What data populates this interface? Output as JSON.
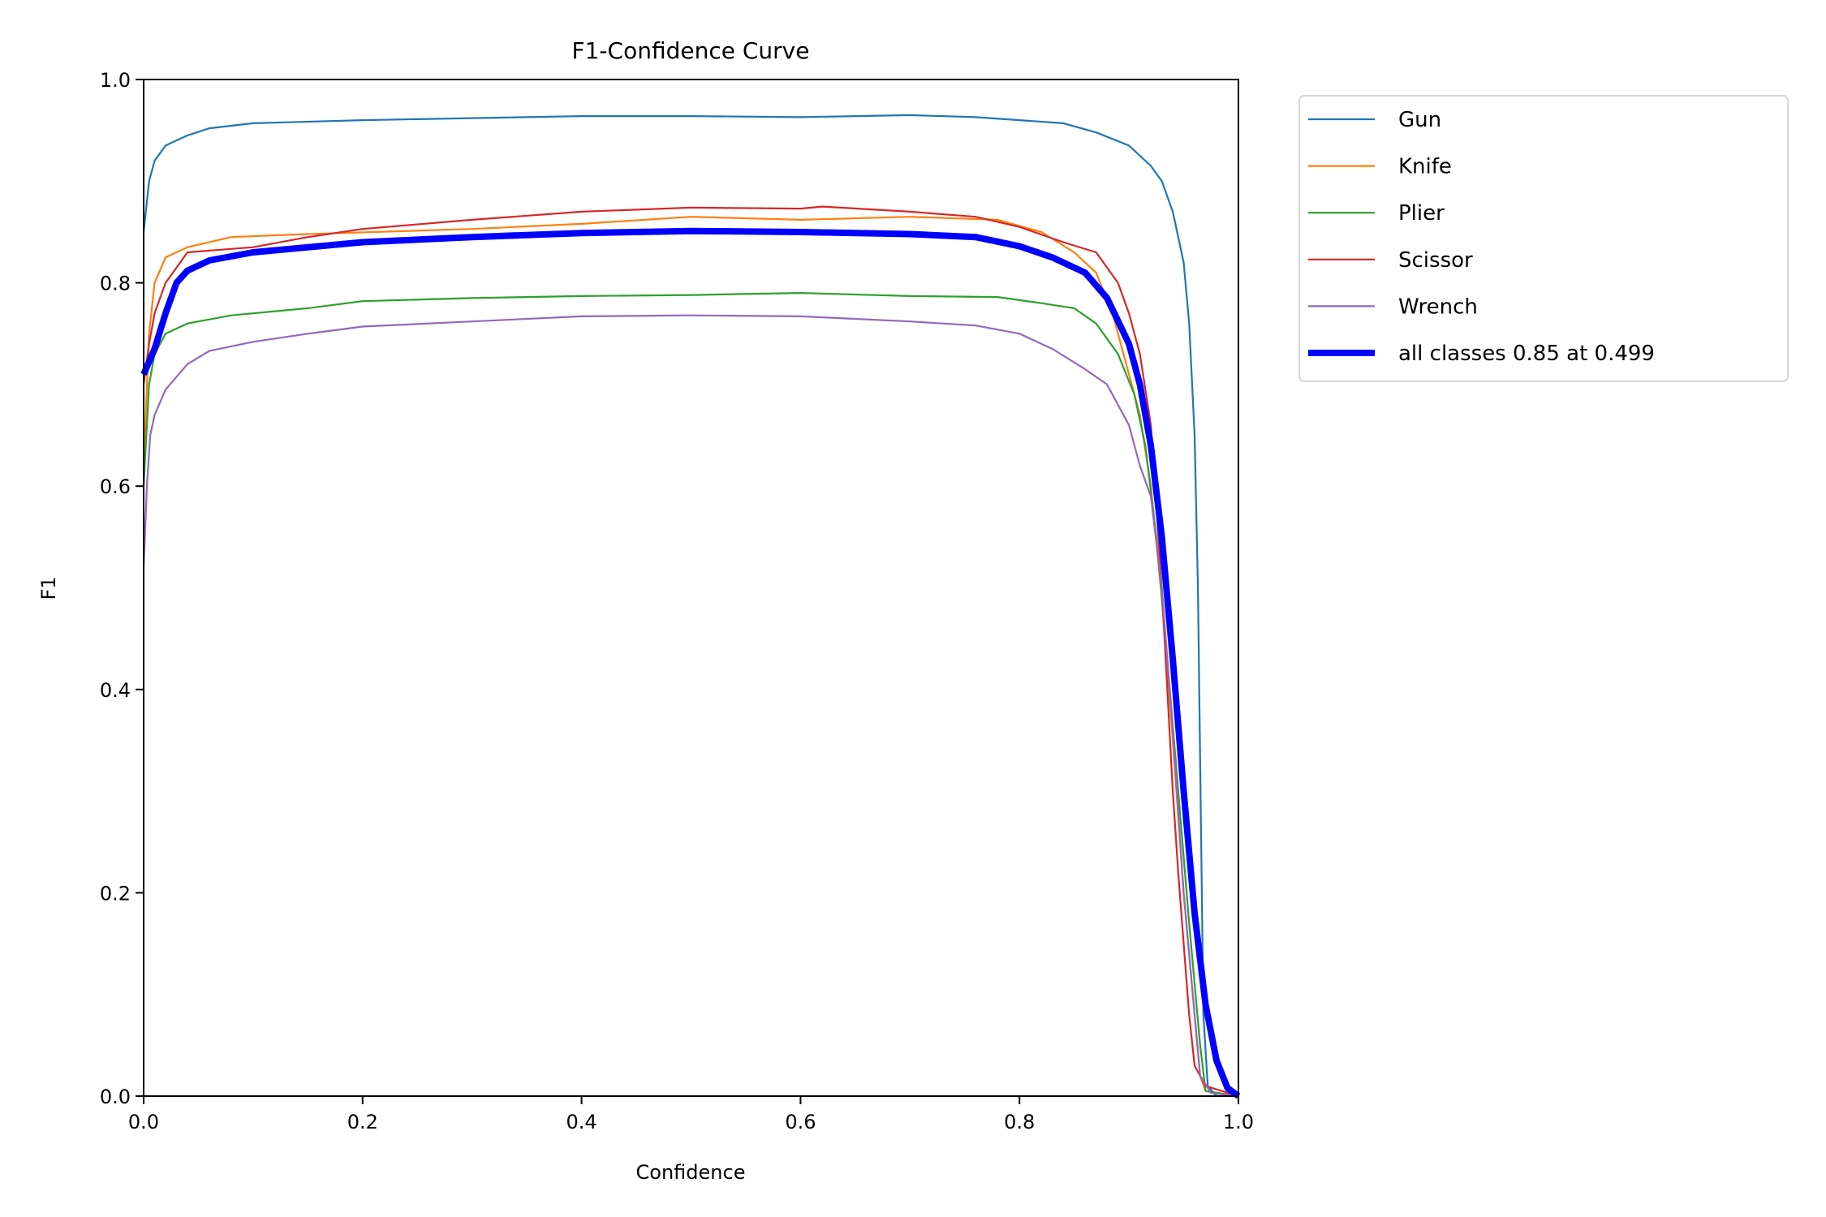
{
  "chart_data": {
    "type": "line",
    "title": "F1-Confidence Curve",
    "xlabel": "Confidence",
    "ylabel": "F1",
    "xlim": [
      0,
      1
    ],
    "ylim": [
      0,
      1
    ],
    "xticks": [
      "0.0",
      "0.2",
      "0.4",
      "0.6",
      "0.8",
      "1.0"
    ],
    "yticks": [
      "0.0",
      "0.2",
      "0.4",
      "0.6",
      "0.8",
      "1.0"
    ],
    "grid": false,
    "legend_placement": "outside-top-right",
    "series": [
      {
        "name": "Gun",
        "color": "#1f77b4",
        "width": "thin",
        "x": [
          0,
          0.005,
          0.01,
          0.02,
          0.04,
          0.06,
          0.1,
          0.2,
          0.3,
          0.4,
          0.5,
          0.6,
          0.7,
          0.76,
          0.8,
          0.84,
          0.87,
          0.9,
          0.92,
          0.93,
          0.94,
          0.95,
          0.955,
          0.96,
          0.963,
          0.966,
          0.968,
          0.972,
          0.98,
          1
        ],
        "y": [
          0.85,
          0.9,
          0.92,
          0.935,
          0.945,
          0.952,
          0.957,
          0.96,
          0.962,
          0.964,
          0.964,
          0.963,
          0.965,
          0.963,
          0.96,
          0.957,
          0.948,
          0.935,
          0.915,
          0.9,
          0.87,
          0.82,
          0.76,
          0.65,
          0.5,
          0.25,
          0.08,
          0.01,
          0,
          0
        ]
      },
      {
        "name": "Knife",
        "color": "#ff7f0e",
        "width": "thin",
        "x": [
          0,
          0.005,
          0.01,
          0.02,
          0.04,
          0.08,
          0.15,
          0.3,
          0.4,
          0.5,
          0.6,
          0.7,
          0.78,
          0.82,
          0.85,
          0.87,
          0.885,
          0.9,
          0.91,
          0.92,
          0.93,
          0.94,
          0.95,
          0.96,
          0.965,
          0.97,
          1
        ],
        "y": [
          0.62,
          0.75,
          0.8,
          0.825,
          0.835,
          0.845,
          0.848,
          0.853,
          0.858,
          0.865,
          0.862,
          0.865,
          0.862,
          0.85,
          0.83,
          0.81,
          0.77,
          0.71,
          0.67,
          0.6,
          0.49,
          0.35,
          0.2,
          0.08,
          0.02,
          0.005,
          0
        ]
      },
      {
        "name": "Plier",
        "color": "#2ca02c",
        "width": "thin",
        "x": [
          0,
          0.005,
          0.01,
          0.02,
          0.04,
          0.08,
          0.15,
          0.2,
          0.3,
          0.4,
          0.5,
          0.6,
          0.7,
          0.78,
          0.82,
          0.85,
          0.87,
          0.89,
          0.905,
          0.915,
          0.925,
          0.935,
          0.945,
          0.955,
          0.965,
          0.97,
          1
        ],
        "y": [
          0.6,
          0.7,
          0.73,
          0.75,
          0.76,
          0.768,
          0.775,
          0.782,
          0.785,
          0.787,
          0.788,
          0.79,
          0.787,
          0.786,
          0.78,
          0.775,
          0.76,
          0.73,
          0.69,
          0.64,
          0.55,
          0.43,
          0.3,
          0.17,
          0.05,
          0.005,
          0
        ]
      },
      {
        "name": "Scissor",
        "color": "#d62728",
        "width": "thin",
        "x": [
          0,
          0.005,
          0.01,
          0.02,
          0.03,
          0.04,
          0.1,
          0.15,
          0.2,
          0.3,
          0.4,
          0.5,
          0.6,
          0.62,
          0.7,
          0.76,
          0.8,
          0.84,
          0.87,
          0.89,
          0.9,
          0.91,
          0.92,
          0.93,
          0.94,
          0.945,
          0.95,
          0.955,
          0.96,
          0.97,
          1
        ],
        "y": [
          0.7,
          0.74,
          0.77,
          0.8,
          0.815,
          0.83,
          0.835,
          0.845,
          0.853,
          0.862,
          0.87,
          0.874,
          0.873,
          0.875,
          0.87,
          0.865,
          0.855,
          0.84,
          0.83,
          0.8,
          0.77,
          0.73,
          0.66,
          0.5,
          0.3,
          0.22,
          0.15,
          0.08,
          0.03,
          0.01,
          0
        ]
      },
      {
        "name": "Wrench",
        "color": "#9467bd",
        "width": "thin",
        "x": [
          0,
          0.003,
          0.006,
          0.01,
          0.02,
          0.04,
          0.06,
          0.1,
          0.15,
          0.2,
          0.3,
          0.4,
          0.5,
          0.6,
          0.7,
          0.76,
          0.8,
          0.83,
          0.86,
          0.88,
          0.9,
          0.91,
          0.92,
          0.93,
          0.94,
          0.95,
          0.96,
          0.965,
          0.975,
          1
        ],
        "y": [
          0.52,
          0.6,
          0.65,
          0.67,
          0.695,
          0.72,
          0.733,
          0.742,
          0.75,
          0.757,
          0.762,
          0.767,
          0.768,
          0.767,
          0.762,
          0.758,
          0.75,
          0.735,
          0.715,
          0.7,
          0.66,
          0.62,
          0.59,
          0.5,
          0.36,
          0.2,
          0.08,
          0.02,
          0.003,
          0
        ]
      },
      {
        "name": "all classes 0.85 at 0.499",
        "color": "#0000ff",
        "width": "thick",
        "x": [
          0,
          0.01,
          0.02,
          0.03,
          0.04,
          0.06,
          0.1,
          0.2,
          0.3,
          0.4,
          0.5,
          0.6,
          0.7,
          0.76,
          0.8,
          0.83,
          0.86,
          0.88,
          0.9,
          0.91,
          0.92,
          0.93,
          0.94,
          0.95,
          0.96,
          0.97,
          0.98,
          0.99,
          1
        ],
        "y": [
          0.71,
          0.735,
          0.77,
          0.8,
          0.812,
          0.822,
          0.83,
          0.84,
          0.845,
          0.849,
          0.851,
          0.85,
          0.848,
          0.845,
          0.836,
          0.825,
          0.81,
          0.785,
          0.74,
          0.7,
          0.64,
          0.55,
          0.43,
          0.3,
          0.18,
          0.09,
          0.035,
          0.008,
          0
        ]
      }
    ]
  }
}
